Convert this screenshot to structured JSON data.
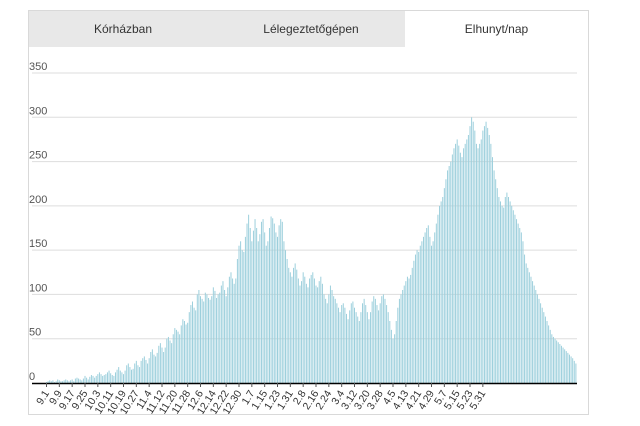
{
  "tabs": [
    {
      "label": "Kórházban",
      "active": false
    },
    {
      "label": "Lélegeztetőgépen",
      "active": false
    },
    {
      "label": "Elhunyt/nap",
      "active": true
    }
  ],
  "colors": {
    "bar": "#9ccfdc",
    "axis": "#000000",
    "grid": "#dddddd",
    "tab_inactive": "#e8e8e8"
  },
  "chart_data": {
    "type": "bar",
    "title": "",
    "xlabel": "",
    "ylabel": "",
    "ylim": [
      0,
      350
    ],
    "yticks": [
      0,
      50,
      100,
      150,
      200,
      250,
      300,
      350
    ],
    "xtick_labels": [
      "9.1",
      "9.9",
      "9.17",
      "9.25",
      "10.3",
      "10.11",
      "10.19",
      "10.27",
      "11.4",
      "11.12",
      "11.20",
      "11.28",
      "12.6",
      "12.14",
      "12.22",
      "12.30",
      "1.7",
      "1.15",
      "1.23",
      "1.31",
      "2.8",
      "2.16",
      "2.24",
      "3.4",
      "3.12",
      "3.20",
      "3.28",
      "4.5",
      "4.13",
      "4.21",
      "4.29",
      "5.7",
      "5.15",
      "5.23",
      "5.31"
    ],
    "grid": true,
    "legend": "none",
    "series": [
      {
        "start_date": "9.1",
        "values": [
          1,
          2,
          3,
          2,
          3,
          1,
          2,
          4,
          3,
          2,
          2,
          3,
          4,
          3,
          2,
          3,
          4,
          2,
          5,
          6,
          5,
          4,
          3,
          5,
          8,
          6,
          4,
          7,
          9,
          8,
          6,
          8,
          10,
          12,
          10,
          8,
          9,
          10,
          12,
          14,
          11,
          9,
          8,
          12,
          15,
          18,
          14,
          12,
          10,
          14,
          20,
          22,
          18,
          15,
          16,
          22,
          25,
          20,
          18,
          25,
          28,
          30,
          26,
          22,
          28,
          35,
          38,
          32,
          30,
          34,
          42,
          45,
          40,
          35,
          40,
          50,
          52,
          48,
          45,
          55,
          62,
          60,
          58,
          55,
          65,
          72,
          70,
          66,
          68,
          80,
          88,
          92,
          85,
          82,
          100,
          105,
          98,
          95,
          92,
          102,
          100,
          96,
          94,
          98,
          108,
          104,
          96,
          100,
          102,
          110,
          115,
          105,
          98,
          108,
          120,
          125,
          118,
          112,
          118,
          140,
          155,
          160,
          150,
          148,
          165,
          180,
          190,
          175,
          160,
          172,
          185,
          175,
          160,
          168,
          182,
          185,
          170,
          155,
          160,
          175,
          188,
          186,
          180,
          170,
          165,
          178,
          185,
          182,
          160,
          150,
          140,
          130,
          125,
          120,
          130,
          135,
          128,
          118,
          110,
          115,
          125,
          120,
          112,
          108,
          118,
          122,
          125,
          118,
          110,
          108,
          115,
          120,
          112,
          100,
          95,
          90,
          100,
          110,
          105,
          98,
          95,
          90,
          85,
          80,
          88,
          90,
          85,
          78,
          72,
          82,
          90,
          92,
          85,
          80,
          75,
          70,
          80,
          90,
          95,
          88,
          80,
          72,
          80,
          92,
          98,
          95,
          88,
          82,
          90,
          98,
          100,
          95,
          88,
          80,
          70,
          60,
          50,
          55,
          70,
          85,
          95,
          100,
          105,
          110,
          115,
          120,
          118,
          122,
          130,
          138,
          145,
          150,
          148,
          155,
          160,
          165,
          170,
          175,
          178,
          165,
          155,
          160,
          170,
          180,
          190,
          200,
          205,
          210,
          220,
          230,
          240,
          245,
          250,
          258,
          265,
          270,
          275,
          268,
          260,
          255,
          265,
          270,
          275,
          280,
          290,
          300,
          295,
          285,
          270,
          265,
          270,
          275,
          285,
          290,
          295,
          288,
          280,
          270,
          255,
          240,
          230,
          220,
          210,
          205,
          200,
          198,
          210,
          215,
          210,
          205,
          200,
          195,
          190,
          185,
          180,
          175,
          170,
          160,
          145,
          135,
          130,
          125,
          120,
          115,
          110,
          105,
          100,
          95,
          90,
          85,
          80,
          75,
          70,
          65,
          60,
          55,
          52,
          50,
          48,
          46,
          44,
          42,
          40,
          38,
          36,
          34,
          32,
          30,
          28,
          25,
          22
        ]
      }
    ]
  }
}
